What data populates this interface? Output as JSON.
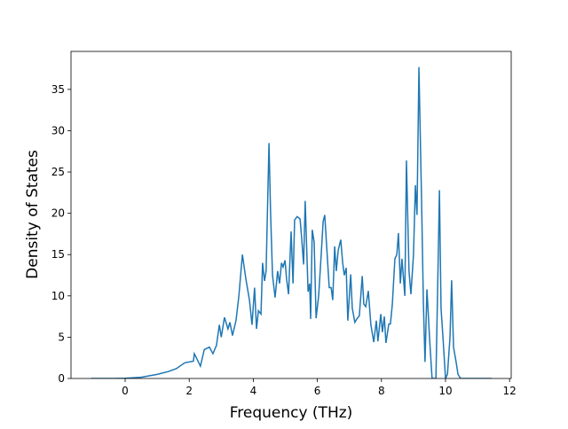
{
  "chart_data": {
    "type": "line",
    "xlabel": "Frequency (THz)",
    "ylabel": "Density of States",
    "xlim": [
      -1.69,
      12.05
    ],
    "ylim": [
      0,
      39.6
    ],
    "xticks": [
      0,
      2,
      4,
      6,
      8,
      10,
      12
    ],
    "yticks": [
      0,
      5,
      10,
      15,
      20,
      25,
      30,
      35
    ],
    "series": [
      {
        "color": "#1f77b4",
        "x": [
          -1.06,
          -0.5,
          0,
          0.5,
          1.0,
          1.36,
          1.6,
          1.86,
          2.13,
          2.16,
          2.35,
          2.47,
          2.63,
          2.74,
          2.85,
          2.94,
          3.0,
          3.1,
          3.21,
          3.27,
          3.35,
          3.46,
          3.55,
          3.66,
          3.77,
          3.88,
          3.96,
          4.04,
          4.1,
          4.16,
          4.24,
          4.29,
          4.35,
          4.4,
          4.49,
          4.54,
          4.6,
          4.68,
          4.76,
          4.82,
          4.88,
          4.93,
          4.99,
          5.04,
          5.1,
          5.18,
          5.24,
          5.29,
          5.37,
          5.46,
          5.51,
          5.57,
          5.62,
          5.71,
          5.76,
          5.79,
          5.84,
          5.9,
          5.96,
          6.04,
          6.12,
          6.18,
          6.23,
          6.29,
          6.37,
          6.43,
          6.48,
          6.54,
          6.59,
          6.65,
          6.73,
          6.79,
          6.84,
          6.9,
          6.95,
          7.04,
          7.09,
          7.17,
          7.23,
          7.31,
          7.4,
          7.45,
          7.51,
          7.59,
          7.67,
          7.76,
          7.84,
          7.89,
          7.98,
          8.03,
          8.09,
          8.14,
          8.23,
          8.28,
          8.34,
          8.42,
          8.48,
          8.53,
          8.59,
          8.64,
          8.73,
          8.78,
          8.86,
          8.92,
          9.0,
          9.06,
          9.11,
          9.17,
          9.25,
          9.31,
          9.36,
          9.42,
          9.5,
          9.58,
          9.7,
          9.75,
          9.81,
          9.86,
          9.92,
          10.0,
          10.06,
          10.14,
          10.19,
          10.25,
          10.33,
          10.39,
          10.47,
          11.44
        ],
        "values": [
          0,
          0,
          0.02,
          0.15,
          0.5,
          0.85,
          1.2,
          1.9,
          2.1,
          3.0,
          1.5,
          3.5,
          3.8,
          3.0,
          4.0,
          6.5,
          5.0,
          7.4,
          6.0,
          6.8,
          5.2,
          7.0,
          10.0,
          15.0,
          12.0,
          9.5,
          6.5,
          11.0,
          6.0,
          8.2,
          7.8,
          14.0,
          11.8,
          13.0,
          28.5,
          20.0,
          12.5,
          9.8,
          13.0,
          11.5,
          14.0,
          13.5,
          14.3,
          12.0,
          10.2,
          17.8,
          11.5,
          19.2,
          19.6,
          19.3,
          17.0,
          13.8,
          21.5,
          10.5,
          11.5,
          7.2,
          18.0,
          16.5,
          7.3,
          10.0,
          15.0,
          19.0,
          19.8,
          16.0,
          11.0,
          11.0,
          9.5,
          16.0,
          13.0,
          15.5,
          16.8,
          14.0,
          12.5,
          13.4,
          7.0,
          12.6,
          8.5,
          6.8,
          7.2,
          7.6,
          12.4,
          9.0,
          8.7,
          10.6,
          6.5,
          4.4,
          7.0,
          4.5,
          7.8,
          5.6,
          7.5,
          4.3,
          6.6,
          6.6,
          9.0,
          14.5,
          15.0,
          17.6,
          11.5,
          14.5,
          10.0,
          26.4,
          13.0,
          10.2,
          15.0,
          23.4,
          19.8,
          37.7,
          22.0,
          9.0,
          2.0,
          10.8,
          5.0,
          0,
          0,
          10.0,
          22.8,
          8.5,
          5.0,
          0,
          0.5,
          5.0,
          11.9,
          3.8,
          2.0,
          0.5,
          0,
          0
        ]
      }
    ]
  }
}
